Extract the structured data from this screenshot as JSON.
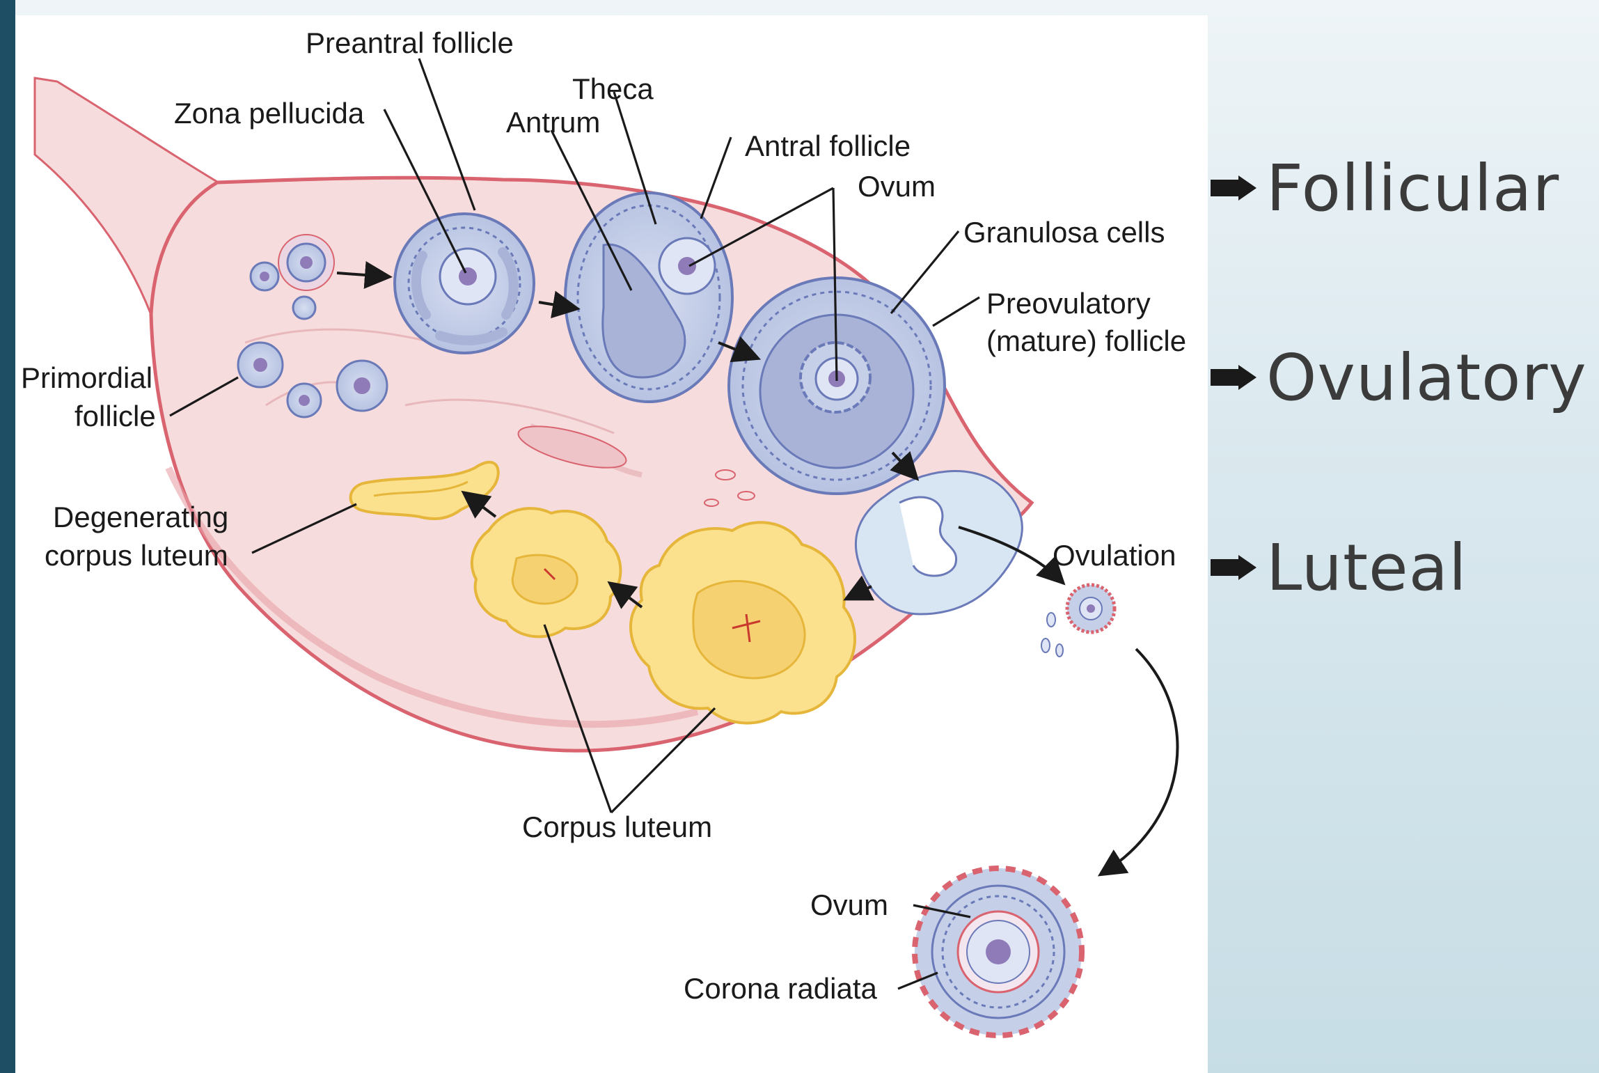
{
  "diagram": {
    "labels": {
      "preantral_follicle": "Preantral follicle",
      "theca": "Theca",
      "zona_pellucida": "Zona pellucida",
      "antrum": "Antrum",
      "antral_follicle": "Antral follicle",
      "ovum_top": "Ovum",
      "granulosa_cells": "Granulosa cells",
      "preovulatory_1": "Preovulatory",
      "preovulatory_2": "(mature) follicle",
      "primordial_1": "Primordial",
      "primordial_2": "follicle",
      "degenerating_1": "Degenerating",
      "degenerating_2": "corpus luteum",
      "ovulation": "Ovulation",
      "corpus_luteum": "Corpus luteum",
      "ovum_bottom": "Ovum",
      "corona_radiata": "Corona radiata"
    },
    "colors": {
      "tissue": "#f6dcdc",
      "tissue_outline": "#d9636f",
      "follicle_fill": "#c5cfe8",
      "follicle_outline": "#6a79b8",
      "antrum_fill": "#a9b3d8",
      "corpus_luteum_fill": "#fbe08e",
      "corpus_luteum_outline": "#e5b63a",
      "ovum_core": "#8e7bb8"
    }
  },
  "bullets": {
    "icon": "arrow-bullet-icon",
    "items": [
      "Follicular",
      "Ovulatory",
      "Luteal"
    ]
  }
}
